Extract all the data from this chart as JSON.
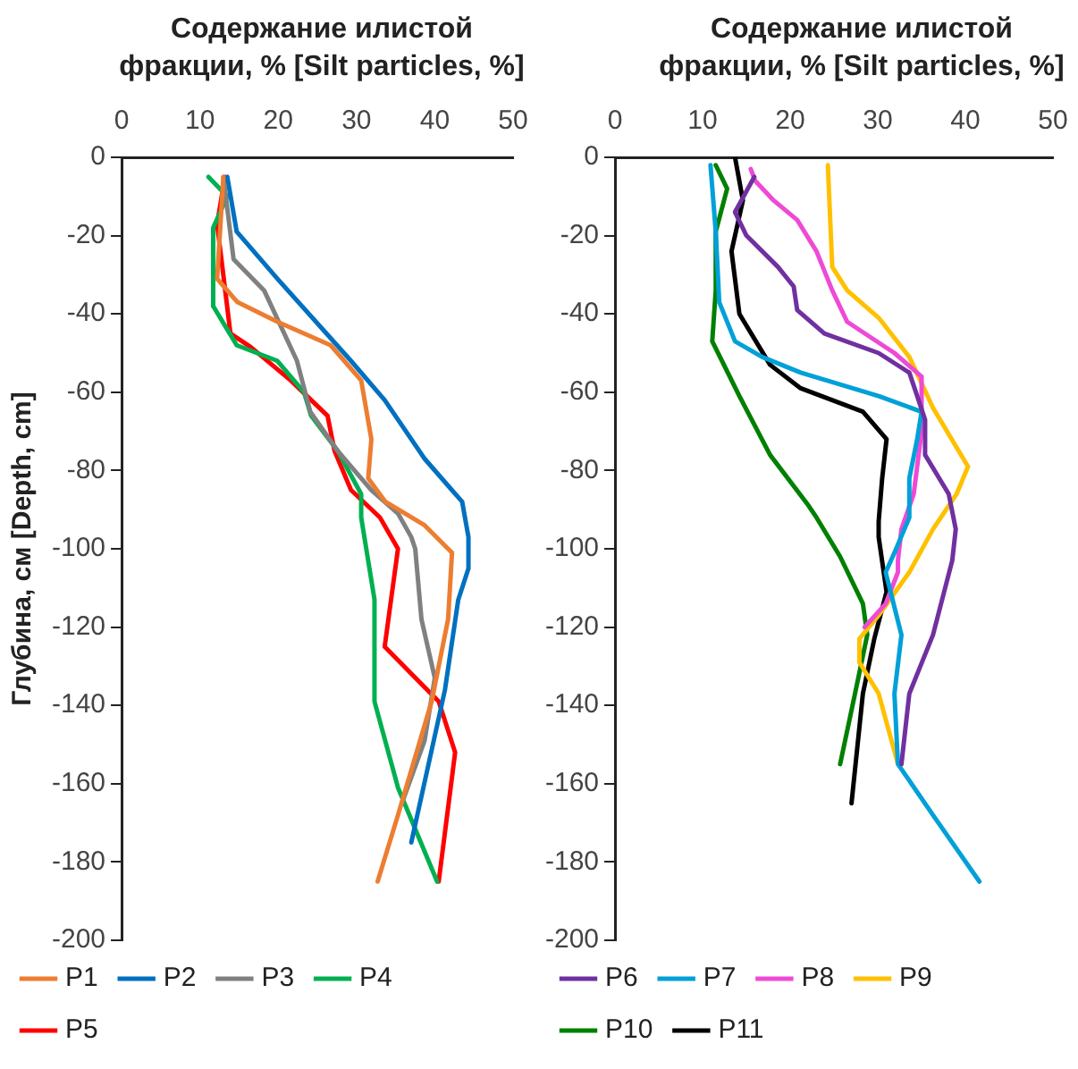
{
  "chart_data": [
    {
      "type": "line",
      "xlabel": "Содержание илистой фракции, % [Silt particles, %]",
      "ylabel": "Глубина, см [Depth, cm]",
      "xlim": [
        0,
        50
      ],
      "xticks": [
        0,
        10,
        20,
        30,
        40,
        50
      ],
      "ylim": [
        -200,
        0
      ],
      "yticks": [
        0,
        -20,
        -40,
        -60,
        -80,
        -100,
        -120,
        -140,
        -160,
        -180,
        -200
      ],
      "grid": false,
      "legend": "bottom",
      "marker": "none",
      "line_style": "solid",
      "series": [
        {
          "name": "P1",
          "color": "#ed7d31",
          "x": [
            13.0,
            12.2,
            14.8,
            19.9,
            26.7,
            30.6,
            31.9,
            31.5,
            33.7,
            38.7,
            41.7,
            42.2,
            41.7,
            39.6,
            35.3,
            32.7
          ],
          "values": [
            -5,
            -31,
            -37,
            -42,
            -48,
            -57,
            -72,
            -82,
            -88,
            -94,
            -100,
            -101,
            -118,
            -139,
            -168,
            -185
          ]
        },
        {
          "name": "P2",
          "color": "#0070c0",
          "x": [
            13.5,
            14.7,
            19.9,
            29.3,
            33.6,
            38.7,
            43.5,
            44.3,
            44.3,
            43.0,
            41.3,
            37.0
          ],
          "values": [
            -5,
            -19,
            -31,
            -52,
            -62,
            -77,
            -88,
            -97,
            -105,
            -113,
            -136,
            -175
          ]
        },
        {
          "name": "P3",
          "color": "#808080",
          "x": [
            13.0,
            14.3,
            18.2,
            22.4,
            24.1,
            27.6,
            31.9,
            35.3,
            37.0,
            37.5,
            38.3,
            40.0,
            38.7,
            35.8
          ],
          "values": [
            -5,
            -26,
            -34,
            -52,
            -65,
            -75,
            -85,
            -91,
            -97,
            -100,
            -118,
            -133,
            -149,
            -165
          ]
        },
        {
          "name": "P4",
          "color": "#00b050",
          "x": [
            11.1,
            13.5,
            11.7,
            11.7,
            14.7,
            19.9,
            23.3,
            24.2,
            27.6,
            30.6,
            30.6,
            32.3,
            32.3,
            35.3,
            40.3
          ],
          "values": [
            -5,
            -10,
            -18,
            -38,
            -48,
            -52,
            -60,
            -66,
            -75,
            -86,
            -92,
            -113,
            -139,
            -161,
            -185
          ]
        },
        {
          "name": "P5",
          "color": "#ff0000",
          "x": [
            13.2,
            12.2,
            13.9,
            16.5,
            21.6,
            26.3,
            27.2,
            29.3,
            33.0,
            35.3,
            33.6,
            40.5,
            42.6,
            40.5
          ],
          "values": [
            -5,
            -17,
            -45,
            -48.5,
            -57,
            -66,
            -75,
            -85,
            -92,
            -100,
            -125,
            -139,
            -152,
            -185
          ]
        }
      ]
    },
    {
      "type": "line",
      "xlabel": "Содержание илистой фракции, % [Silt particles, %]",
      "xlim": [
        0,
        50
      ],
      "xticks": [
        0,
        10,
        20,
        30,
        40,
        50
      ],
      "ylim": [
        -200,
        0
      ],
      "yticks": [
        0,
        -20,
        -40,
        -60,
        -80,
        -100,
        -120,
        -140,
        -160,
        -180,
        -200
      ],
      "grid": false,
      "legend": "bottom",
      "marker": "none",
      "line_style": "solid",
      "series": [
        {
          "name": "P6",
          "color": "#7030a0",
          "x": [
            15.9,
            13.7,
            15.0,
            18.6,
            20.4,
            20.8,
            23.9,
            30.1,
            33.6,
            35.4,
            35.4,
            38.1,
            38.9,
            38.5,
            36.3,
            33.6,
            32.7
          ],
          "values": [
            -5,
            -14,
            -20,
            -28,
            -33,
            -39,
            -45,
            -50,
            -55,
            -67,
            -76,
            -86,
            -95,
            -103,
            -122,
            -137,
            -155
          ]
        },
        {
          "name": "P7",
          "color": "#00a0d8",
          "x": [
            10.9,
            11.5,
            11.9,
            13.7,
            16.8,
            21.2,
            30.1,
            35.0,
            34.5,
            33.6,
            33.6,
            31.9,
            30.9,
            32.7,
            31.9,
            32.3,
            36.3,
            41.6
          ],
          "values": [
            -2,
            -19,
            -37,
            -47,
            -51,
            -55,
            -61,
            -65,
            -72,
            -82,
            -92,
            -101,
            -106,
            -122,
            -137,
            -155,
            -168,
            -185
          ]
        },
        {
          "name": "P8",
          "color": "#ee4ad6",
          "x": [
            15.5,
            16.0,
            18.1,
            20.8,
            23.0,
            24.8,
            26.5,
            31.9,
            35.0,
            35.0,
            34.1,
            32.7,
            32.3,
            32.3,
            30.9,
            28.5
          ],
          "values": [
            -3,
            -6,
            -11,
            -16,
            -24,
            -34,
            -42,
            -50,
            -56,
            -70,
            -86,
            -95,
            -103,
            -106,
            -114,
            -120
          ]
        },
        {
          "name": "P9",
          "color": "#ffc000",
          "x": [
            24.3,
            24.8,
            26.5,
            30.1,
            33.6,
            36.3,
            40.3,
            39.0,
            36.3,
            33.6,
            30.1,
            27.9,
            27.9,
            30.1,
            32.3
          ],
          "values": [
            -2,
            -28,
            -34,
            -41,
            -51,
            -64,
            -79,
            -86,
            -95,
            -106,
            -117,
            -123,
            -129,
            -137,
            -155
          ]
        },
        {
          "name": "P10",
          "color": "#008000",
          "x": [
            11.5,
            12.8,
            11.5,
            11.5,
            11.1,
            14.2,
            17.7,
            22.1,
            23.0,
            25.7,
            28.3,
            28.8,
            27.4,
            25.7
          ],
          "values": [
            -2,
            -8,
            -19,
            -34,
            -47,
            -61,
            -76,
            -89,
            -92,
            -102,
            -114,
            -122,
            -137,
            -155
          ]
        },
        {
          "name": "P11",
          "color": "#000000",
          "x": [
            13.7,
            14.6,
            13.3,
            14.2,
            17.7,
            21.2,
            28.3,
            31.0,
            30.5,
            30.1,
            30.1,
            31.0,
            29.6,
            28.3,
            27.0
          ],
          "values": [
            0,
            -11,
            -24,
            -40,
            -53,
            -59,
            -65,
            -72,
            -82,
            -93,
            -97,
            -111,
            -123,
            -137,
            -165
          ]
        }
      ]
    }
  ]
}
